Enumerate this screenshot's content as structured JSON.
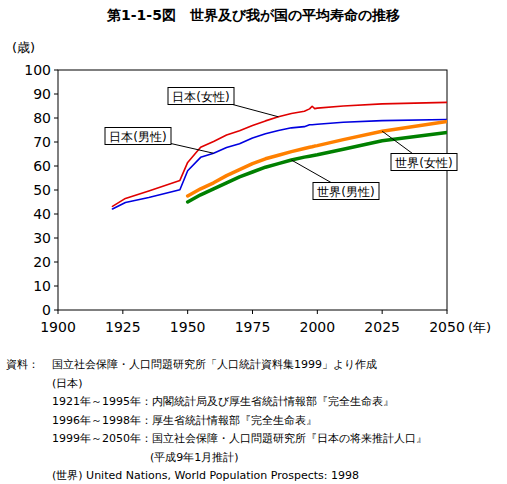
{
  "chart_data": {
    "type": "line",
    "title": "第1-1-5図　世界及び我が国の平均寿命の推移",
    "y_label": "(歳)",
    "x_label": "(年)",
    "x": [
      1921,
      1926,
      1935,
      1947,
      1950,
      1955,
      1960,
      1965,
      1970,
      1975,
      1980,
      1985,
      1990,
      1995,
      1997,
      1998,
      1999,
      2000,
      2010,
      2025,
      2050
    ],
    "series": [
      {
        "name": "日本(女性)",
        "color": "#e00000",
        "values": [
          43.2,
          46.5,
          49.6,
          54.0,
          61.5,
          67.8,
          70.2,
          72.9,
          74.7,
          76.9,
          78.8,
          80.5,
          81.9,
          82.8,
          83.8,
          84.9,
          83.9,
          84.1,
          85.0,
          85.9,
          86.5
        ]
      },
      {
        "name": "日本(男性)",
        "color": "#0000e0",
        "values": [
          42.1,
          44.8,
          46.9,
          50.1,
          58.0,
          63.6,
          65.3,
          67.7,
          69.3,
          71.7,
          73.4,
          74.8,
          75.9,
          76.4,
          77.2,
          77.2,
          77.3,
          77.4,
          78.2,
          78.9,
          79.4
        ]
      },
      {
        "name": "世界(女性)",
        "color": "#ff8000",
        "values": [
          null,
          null,
          null,
          null,
          47.5,
          50.5,
          53.0,
          56.0,
          58.5,
          61.0,
          63.0,
          64.5,
          66.0,
          67.3,
          67.8,
          68.0,
          68.3,
          68.5,
          71.0,
          74.5,
          78.5
        ]
      },
      {
        "name": "世界(男性)",
        "color": "#008000",
        "values": [
          null,
          null,
          null,
          null,
          45.0,
          48.0,
          50.5,
          53.0,
          55.5,
          57.5,
          59.5,
          61.0,
          62.5,
          63.7,
          64.1,
          64.3,
          64.5,
          64.7,
          67.0,
          70.5,
          74.0
        ]
      }
    ],
    "xlim": [
      1900,
      2050
    ],
    "xticks": [
      1900,
      1925,
      1950,
      1975,
      2000,
      2025,
      2050
    ],
    "ylim": [
      0,
      100
    ],
    "yticks": [
      0,
      10,
      20,
      30,
      40,
      50,
      60,
      70,
      80,
      90,
      100
    ],
    "grid": false,
    "source_label": "資料：",
    "source": [
      "国立社会保障・人口問題研究所「人口統計資料集1999」より作成",
      "(日本)",
      "1921年～1995年：内閣統計局及び厚生省統計情報部『完全生命表』",
      "1996年～1998年：厚生省統計情報部『完全生命表』",
      "1999年～2050年：国立社会保障・人口問題研究所『日本の将来推計人口』",
      "(平成9年1月推計)",
      "(世界) United Nations, World Population Prospects: 1998"
    ]
  }
}
